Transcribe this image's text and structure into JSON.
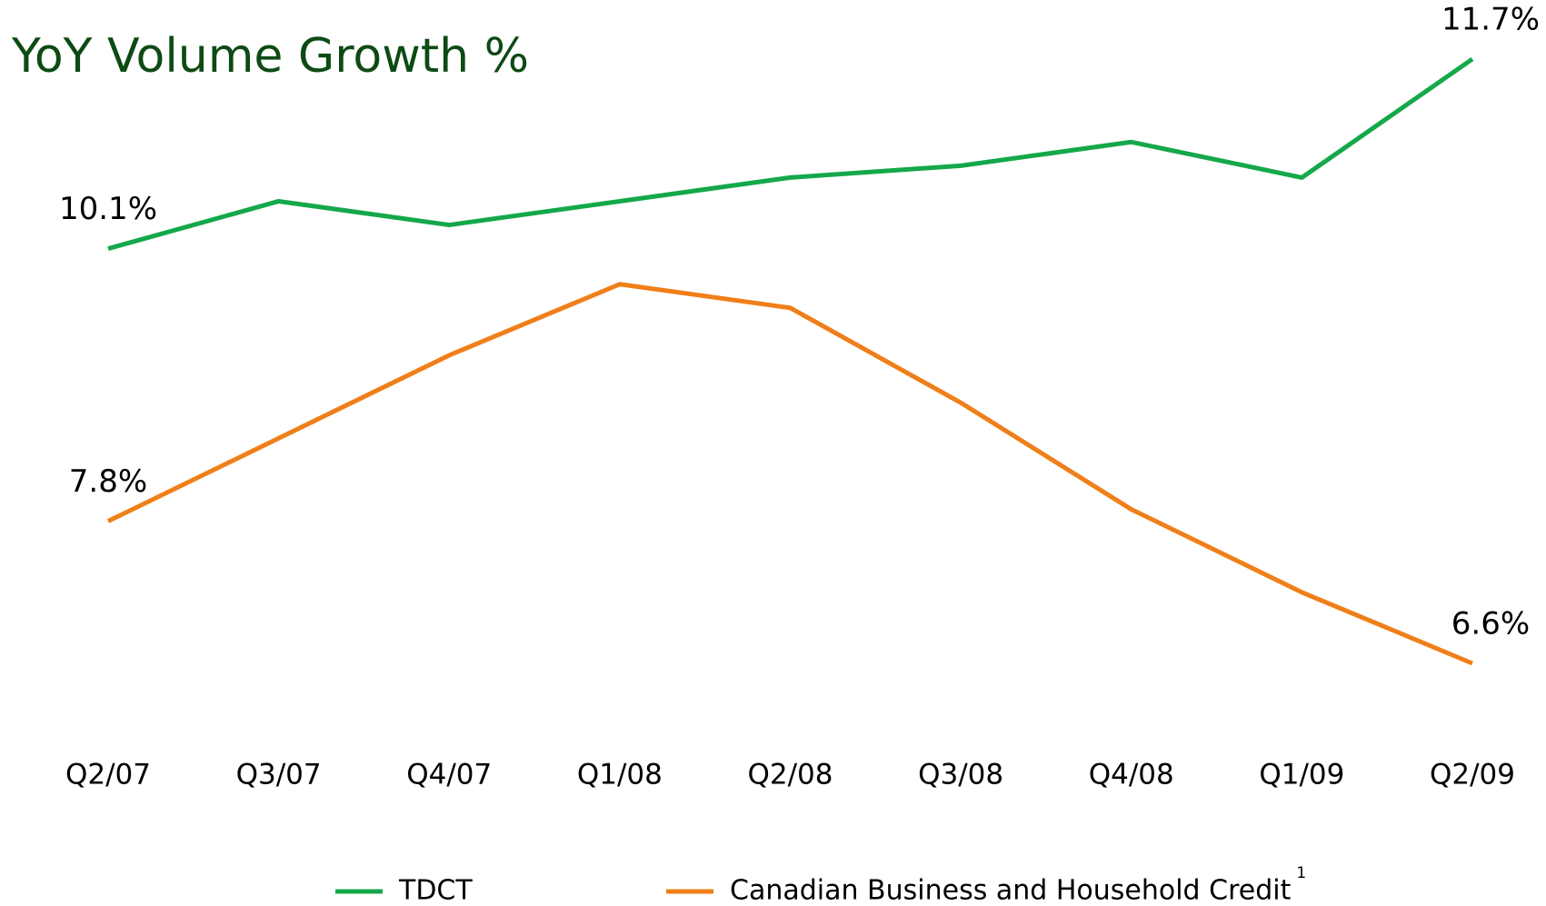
{
  "chart_data": {
    "type": "line",
    "title": "YoY Volume Growth %",
    "categories": [
      "Q2/07",
      "Q3/07",
      "Q4/07",
      "Q1/08",
      "Q2/08",
      "Q3/08",
      "Q4/08",
      "Q1/09",
      "Q2/09"
    ],
    "series": [
      {
        "name": "TDCT",
        "color": "#14a84a",
        "values": [
          10.1,
          10.5,
          10.3,
          10.5,
          10.7,
          10.8,
          11.0,
          10.7,
          11.7
        ],
        "value_labels": [
          "10.1%",
          null,
          null,
          null,
          null,
          null,
          null,
          null,
          "11.7%"
        ]
      },
      {
        "name": "Canadian Business and Household Credit",
        "footnote": "1",
        "color": "#f07f19",
        "values": [
          7.8,
          8.5,
          9.2,
          9.8,
          9.6,
          8.8,
          7.9,
          7.2,
          6.6
        ],
        "value_labels": [
          "7.8%",
          null,
          null,
          null,
          null,
          null,
          null,
          null,
          "6.6%"
        ]
      }
    ],
    "legend": "bottom"
  }
}
